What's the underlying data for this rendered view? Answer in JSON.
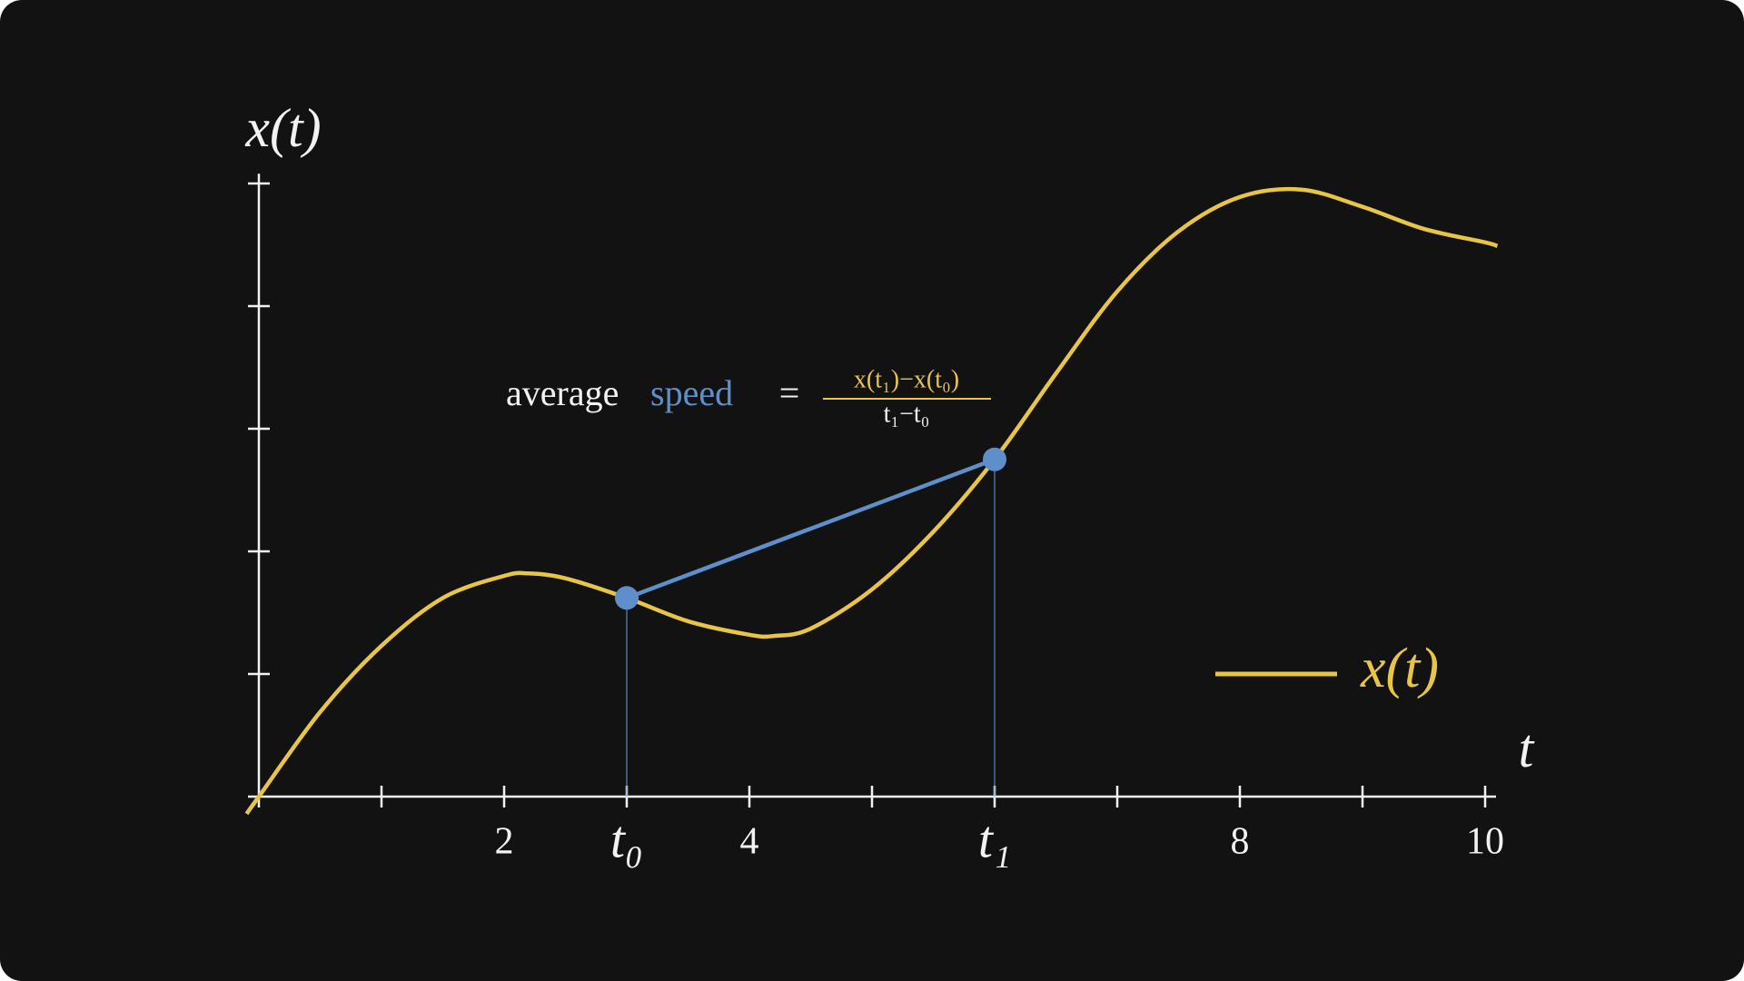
{
  "chart_data": {
    "type": "line",
    "x_label": "t",
    "y_label": "x(t)",
    "xlim": [
      0,
      10
    ],
    "ylim": [
      0,
      5.05
    ],
    "xticks": [
      {
        "value": 1,
        "label": null
      },
      2,
      {
        "value": 3,
        "label": "t₀"
      },
      4,
      {
        "value": 5,
        "label": null
      },
      {
        "value": 6,
        "label": "t₁"
      },
      {
        "value": 7,
        "label": null
      },
      8,
      {
        "value": 9,
        "label": null
      },
      10
    ],
    "yticks": [
      {
        "value": 1,
        "label": null
      },
      {
        "value": 2,
        "label": null
      },
      {
        "value": 3,
        "label": null
      },
      {
        "value": 4,
        "label": null
      },
      {
        "value": 5,
        "label": null
      }
    ],
    "series": [
      {
        "name": "x(t)",
        "color": "#e8c547",
        "x": [
          -0.1,
          0,
          0.5,
          1,
          1.5,
          2,
          2.2,
          2.5,
          3,
          3.5,
          4,
          4.2,
          4.5,
          5,
          5.5,
          6,
          6.5,
          7,
          7.5,
          8,
          8.5,
          9,
          9.5,
          10,
          10.1
        ],
        "values": [
          -0.14,
          0,
          0.69,
          1.23,
          1.62,
          1.8,
          1.82,
          1.78,
          1.62,
          1.43,
          1.32,
          1.31,
          1.37,
          1.69,
          2.16,
          2.75,
          3.45,
          4.12,
          4.61,
          4.89,
          4.95,
          4.81,
          4.63,
          4.52,
          4.49
        ]
      }
    ],
    "secant": {
      "color": "#5f8fcb",
      "x": [
        3,
        6
      ],
      "values": [
        1.62,
        2.75
      ]
    },
    "annotation": {
      "text": "average",
      "highlight": "speed",
      "equals": "=",
      "numerator": "x(t₁)−x(t₀)",
      "denominator": "t₁−t₀"
    },
    "legend": "lower right"
  }
}
